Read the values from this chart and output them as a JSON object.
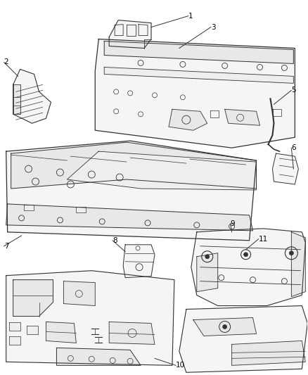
{
  "background_color": "#ffffff",
  "line_color": "#333333",
  "label_color": "#000000",
  "figsize": [
    4.38,
    5.33
  ],
  "dpi": 100,
  "fill_color": "#f5f5f5",
  "fill_color2": "#e8e8e8",
  "fill_color3": "#eeeeee"
}
